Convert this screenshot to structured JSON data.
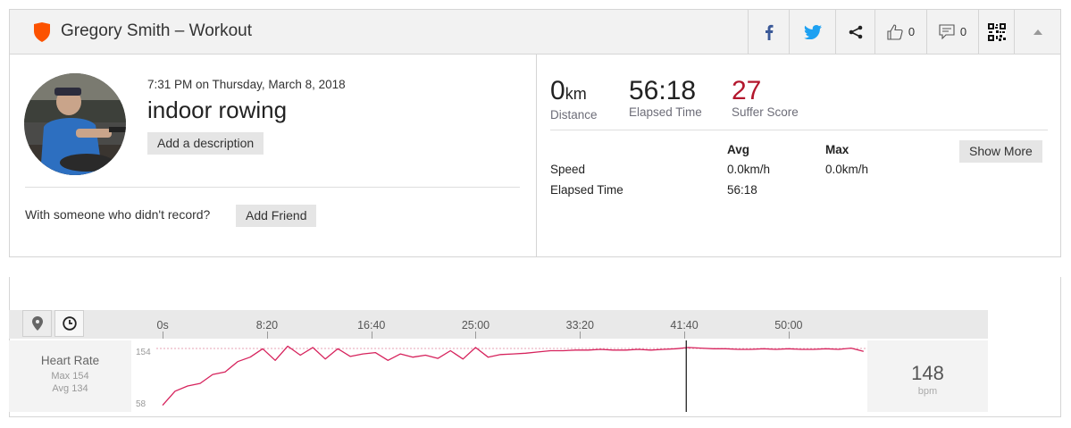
{
  "header": {
    "title": "Gregory Smith – Workout",
    "kudos_count": "0",
    "comments_count": "0"
  },
  "activity": {
    "datetime": "7:31 PM on Thursday, March 8, 2018",
    "name": "indoor rowing",
    "add_description_label": "Add a description",
    "with_someone_text": "With someone who didn't record?",
    "add_friend_label": "Add Friend"
  },
  "stats": {
    "distance_value": "0",
    "distance_unit": "km",
    "distance_label": "Distance",
    "elapsed_value": "56:18",
    "elapsed_label": "Elapsed Time",
    "suffer_value": "27",
    "suffer_label": "Suffer Score"
  },
  "details": {
    "col_avg": "Avg",
    "col_max": "Max",
    "rows": [
      {
        "label": "Speed",
        "avg": "0.0km/h",
        "max": "0.0km/h"
      },
      {
        "label": "Elapsed Time",
        "avg": "56:18",
        "max": ""
      }
    ],
    "show_more_label": "Show More"
  },
  "chart": {
    "time_ticks": [
      "0s",
      "8:20",
      "16:40",
      "25:00",
      "33:20",
      "41:40",
      "50:00"
    ],
    "metric_title": "Heart Rate",
    "max_text": "Max 154",
    "avg_text": "Avg 134",
    "y_max_label": "154",
    "y_min_label": "58",
    "current_value": "148",
    "current_unit": "bpm"
  },
  "colors": {
    "brand_orange": "#fc5200",
    "suffer_red": "#b3172d",
    "facebook_blue": "#3b5998",
    "twitter_blue": "#1da1f2",
    "heart_rate_line": "#d6225c"
  },
  "chart_data": {
    "type": "line",
    "x_unit": "seconds",
    "xlim": [
      0,
      3378
    ],
    "ylim": [
      58,
      154
    ],
    "cursor_x": 2510,
    "x": [
      0,
      60,
      120,
      180,
      240,
      300,
      360,
      420,
      480,
      540,
      600,
      660,
      720,
      780,
      840,
      900,
      960,
      1020,
      1080,
      1140,
      1200,
      1260,
      1320,
      1380,
      1440,
      1500,
      1560,
      1620,
      1680,
      1740,
      1800,
      1860,
      1920,
      1980,
      2040,
      2100,
      2160,
      2220,
      2280,
      2340,
      2400,
      2460,
      2520,
      2580,
      2640,
      2700,
      2760,
      2820,
      2880,
      2940,
      3000,
      3060,
      3120,
      3180,
      3240,
      3300,
      3360
    ],
    "values": [
      60,
      82,
      90,
      94,
      108,
      112,
      128,
      135,
      148,
      130,
      152,
      138,
      150,
      132,
      148,
      136,
      140,
      142,
      130,
      140,
      135,
      138,
      133,
      145,
      132,
      150,
      135,
      139,
      140,
      141,
      143,
      145,
      145,
      146,
      146,
      147,
      146,
      146,
      147,
      146,
      147,
      148,
      150,
      149,
      148,
      148,
      147,
      147,
      148,
      147,
      148,
      147,
      147,
      148,
      147,
      149,
      144
    ]
  }
}
